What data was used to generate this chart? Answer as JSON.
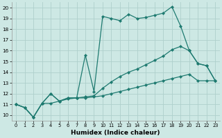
{
  "xlabel": "Humidex (Indice chaleur)",
  "bg_color": "#cde8e4",
  "grid_color": "#aed0cc",
  "line_color": "#1e7a70",
  "xlim_min": -0.5,
  "xlim_max": 23.5,
  "ylim_min": 9.5,
  "ylim_max": 20.5,
  "xticks": [
    0,
    1,
    2,
    3,
    4,
    5,
    6,
    7,
    8,
    9,
    10,
    11,
    12,
    13,
    14,
    15,
    16,
    17,
    18,
    19,
    20,
    21,
    22,
    23
  ],
  "yticks": [
    10,
    11,
    12,
    13,
    14,
    15,
    16,
    17,
    18,
    19,
    20
  ],
  "line1_x": [
    0,
    1,
    2,
    3,
    4,
    5,
    6,
    7,
    8,
    9,
    10,
    11,
    12,
    13,
    14,
    15,
    16,
    17,
    18,
    19,
    20,
    21,
    22,
    23
  ],
  "line1_y": [
    11.0,
    10.7,
    9.8,
    11.1,
    12.0,
    11.3,
    11.6,
    11.6,
    15.6,
    12.2,
    19.2,
    19.0,
    18.8,
    19.4,
    19.0,
    19.1,
    19.3,
    19.5,
    20.1,
    18.3,
    16.0,
    14.8,
    14.6,
    13.2
  ],
  "line2_x": [
    0,
    1,
    2,
    3,
    4,
    5,
    6,
    7,
    8,
    9,
    10,
    11,
    12,
    13,
    14,
    15,
    16,
    17,
    18,
    19,
    20,
    21,
    22,
    23
  ],
  "line2_y": [
    11.0,
    10.7,
    9.8,
    11.1,
    12.0,
    11.3,
    11.6,
    11.6,
    11.7,
    11.8,
    12.5,
    13.1,
    13.6,
    14.0,
    14.3,
    14.7,
    15.1,
    15.5,
    16.1,
    16.4,
    16.0,
    14.8,
    14.6,
    13.2
  ],
  "line3_x": [
    0,
    1,
    2,
    3,
    4,
    5,
    6,
    7,
    8,
    9,
    10,
    11,
    12,
    13,
    14,
    15,
    16,
    17,
    18,
    19,
    20,
    21,
    22,
    23
  ],
  "line3_y": [
    11.0,
    10.7,
    9.8,
    11.1,
    11.1,
    11.3,
    11.5,
    11.6,
    11.6,
    11.7,
    11.8,
    12.0,
    12.2,
    12.4,
    12.6,
    12.8,
    13.0,
    13.2,
    13.4,
    13.6,
    13.8,
    13.2,
    13.2,
    13.2
  ]
}
